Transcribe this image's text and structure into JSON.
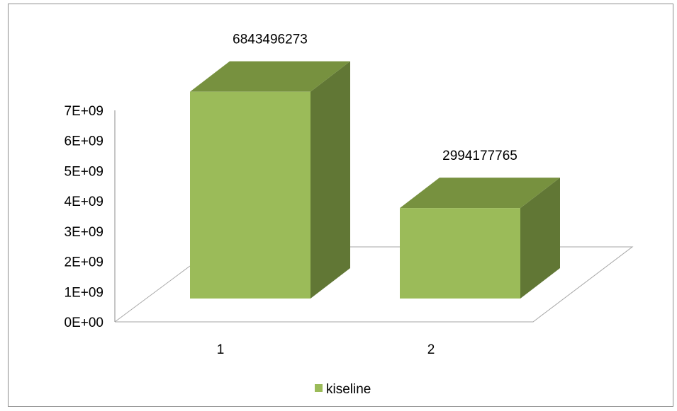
{
  "chart_data": {
    "type": "bar",
    "style": "3d-column",
    "categories": [
      "1",
      "2"
    ],
    "series": [
      {
        "name": "kiseline",
        "values": [
          6843496273,
          2994177765
        ],
        "color": "#9bbb59"
      }
    ],
    "data_labels": [
      "6843496273",
      "2994177765"
    ],
    "y_ticks": [
      "0E+00",
      "1E+09",
      "2E+09",
      "3E+09",
      "4E+09",
      "5E+09",
      "6E+09",
      "7E+09"
    ],
    "ylim": [
      0,
      7000000000
    ],
    "legend_position": "bottom",
    "grid": false,
    "title": "",
    "xlabel": "",
    "ylabel": ""
  }
}
